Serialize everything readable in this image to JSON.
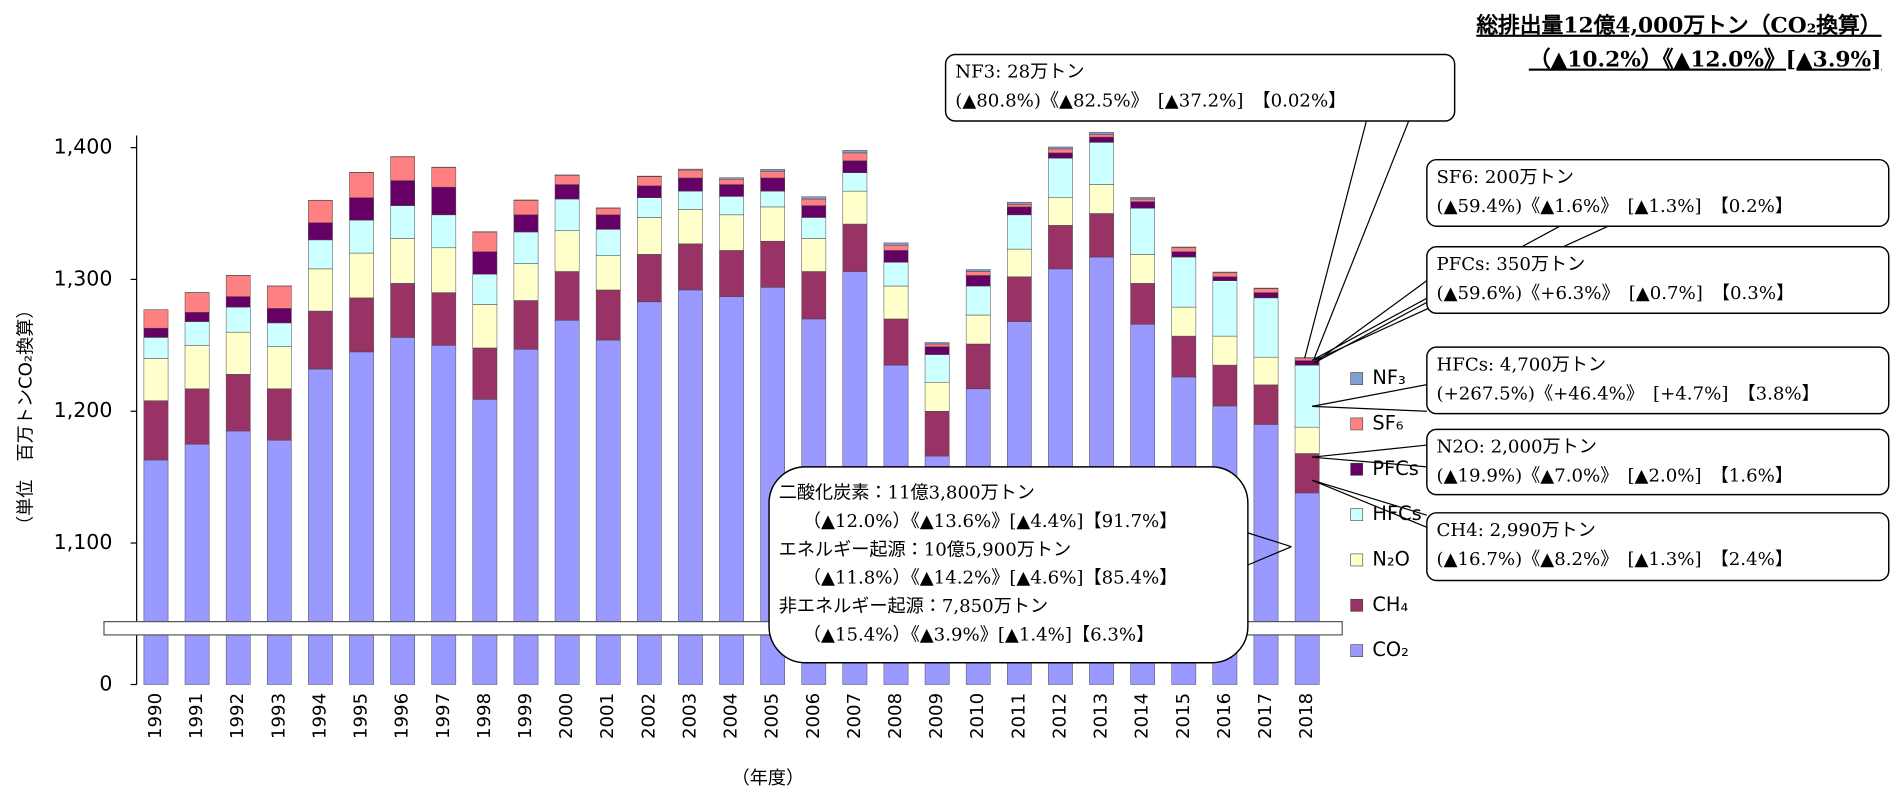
{
  "chart_data": {
    "type": "stacked_bar",
    "title": "総排出量12億4,000万トン（CO₂換算）",
    "subtitle": "（▲10.2%）《▲12.0%》[▲3.9%]",
    "y_label": "（単位　百万トンCO₂換算）",
    "x_label": "（年度）",
    "categories": [
      "1990",
      "1991",
      "1992",
      "1993",
      "1994",
      "1995",
      "1996",
      "1997",
      "1998",
      "1999",
      "2000",
      "2001",
      "2002",
      "2003",
      "2004",
      "2005",
      "2006",
      "2007",
      "2008",
      "2009",
      "2010",
      "2011",
      "2012",
      "2013",
      "2014",
      "2015",
      "2016",
      "2017",
      "2018"
    ],
    "series": [
      {
        "name": "CO₂",
        "color": "#9999ff",
        "values": [
          1163,
          1175,
          1185,
          1178,
          1232,
          1245,
          1256,
          1250,
          1209,
          1247,
          1269,
          1254,
          1283,
          1292,
          1287,
          1294,
          1270,
          1306,
          1235,
          1166,
          1217,
          1268,
          1308,
          1317,
          1266,
          1226,
          1204,
          1190,
          1138
        ]
      },
      {
        "name": "CH₄",
        "color": "#993366",
        "values": [
          45,
          42,
          43,
          39,
          44,
          41,
          41,
          40,
          39,
          37,
          37,
          38,
          36,
          35,
          35,
          35,
          36,
          36,
          35,
          34,
          34,
          34,
          33,
          33,
          31,
          31,
          31,
          30,
          29.9
        ]
      },
      {
        "name": "N₂O",
        "color": "#ffffcc",
        "values": [
          32,
          33,
          32,
          32,
          32,
          34,
          34,
          34,
          33,
          28,
          31,
          26,
          28,
          26,
          27,
          26,
          25,
          25,
          25,
          22,
          22,
          21,
          21,
          22,
          22,
          22,
          22,
          21,
          20
        ]
      },
      {
        "name": "HFCs",
        "color": "#ccffff",
        "values": [
          16,
          18,
          19,
          18,
          22,
          25,
          25,
          25,
          23,
          24,
          24,
          20,
          15,
          14,
          14,
          12,
          16,
          14,
          18,
          21,
          22,
          26,
          30,
          32,
          35,
          38,
          42,
          45,
          47
        ]
      },
      {
        "name": "PFCs",
        "color": "#660066",
        "values": [
          7,
          7,
          8,
          11,
          13,
          17,
          19,
          21,
          17,
          13,
          11,
          11,
          9,
          10,
          9,
          10,
          9,
          9,
          9,
          6,
          8,
          6,
          4,
          4,
          5,
          4,
          3,
          4,
          3.5
        ]
      },
      {
        "name": "SF₆",
        "color": "#ff8080",
        "values": [
          14,
          15,
          16,
          17,
          17,
          19,
          18,
          15,
          15,
          11,
          7,
          5,
          7,
          6,
          4,
          5,
          5,
          6,
          4,
          2,
          3,
          2,
          3,
          2,
          2,
          3,
          3,
          3,
          2.0
        ]
      },
      {
        "name": "NF₃",
        "color": "#7f9fd0",
        "values": [
          0.03,
          0.04,
          0.05,
          0.06,
          0.1,
          0.2,
          0.2,
          0.2,
          0.2,
          0.3,
          0.3,
          0.3,
          0.4,
          0.7,
          1.2,
          1.5,
          1.7,
          1.9,
          1.7,
          1.1,
          1.5,
          1.6,
          1.5,
          1.6,
          1.2,
          0.6,
          0.6,
          0.45,
          0.28
        ]
      }
    ],
    "ylim": [
      0,
      1400
    ],
    "yticks": [
      0,
      {
        "value": 1100,
        "label": "1,100"
      },
      {
        "value": 1200,
        "label": "1,200"
      },
      {
        "value": 1300,
        "label": "1,300"
      },
      {
        "value": 1400,
        "label": "1,400"
      }
    ],
    "axis_break": true,
    "legend": "right",
    "callouts": [
      [
        "NF3: 28万トン",
        "(▲80.8%)《▲82.5%》　[▲37.2%]　【0.02%】"
      ],
      [
        "SF6: 200万トン",
        "(▲59.4%)《▲1.6%》　[▲1.3%]　【0.2%】"
      ],
      [
        "PFCs: 350万トン",
        "(▲59.6%)《+6.3%》　[▲0.7%]　【0.3%】"
      ],
      [
        "HFCs: 4,700万トン",
        "(+267.5%)《+46.4%》　[+4.7%]　【3.8%】"
      ],
      [
        "N2O: 2,000万トン",
        "(▲19.9%)《▲7.0%》　[▲2.0%]　【1.6%】"
      ],
      [
        "CH4: 2,990万トン",
        "(▲16.7%)《▲8.2%》　[▲1.3%]　【2.4%】"
      ],
      [
        "二酸化炭素：11億3,800万トン",
        "（▲12.0%）《▲13.6%》[▲4.4%]【91.7%】",
        "エネルギー起源：10億5,900万トン",
        "（▲11.8%）《▲14.2%》[▲4.6%]【85.4%】",
        "非エネルギー起源：7,850万トン",
        "（▲15.4%）《▲3.9%》[▲1.4%]【6.3%】"
      ]
    ]
  }
}
